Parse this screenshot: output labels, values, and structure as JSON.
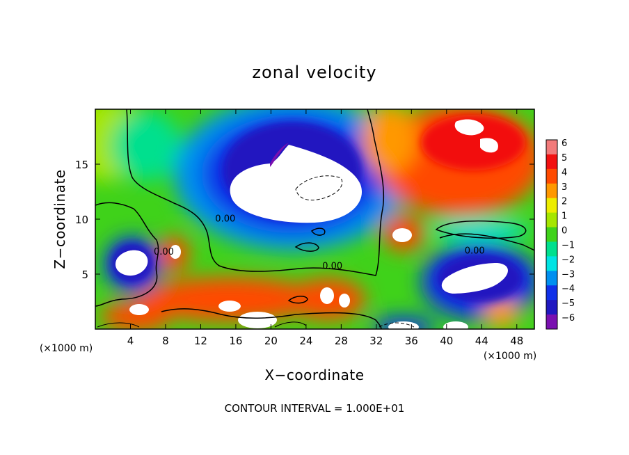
{
  "chart_data": {
    "type": "heatmap",
    "title": "zonal velocity",
    "xlabel": "X−coordinate",
    "ylabel": "Z−coordinate",
    "x_unit_left": "(×1000 m)",
    "x_unit_right": "(×1000 m)",
    "xlim": [
      0,
      50
    ],
    "ylim": [
      0,
      20
    ],
    "x_ticks": [
      4,
      8,
      12,
      16,
      20,
      24,
      28,
      32,
      36,
      40,
      44,
      48
    ],
    "x_tick_labels": [
      "4",
      "8",
      "12",
      "16",
      "20",
      "24",
      "28",
      "32",
      "36",
      "40",
      "44",
      "48"
    ],
    "y_ticks": [
      5,
      10,
      15
    ],
    "y_tick_labels": [
      "5",
      "10",
      "15"
    ],
    "colorbar": {
      "levels": [
        6,
        5,
        4,
        3,
        2,
        1,
        0,
        -1,
        -2,
        -3,
        -4,
        -5,
        -6
      ],
      "labels": [
        "6",
        "5",
        "4",
        "3",
        "2",
        "1",
        "0",
        "−1",
        "−2",
        "−3",
        "−4",
        "−5",
        "−6"
      ],
      "colors": [
        "#f27a7a",
        "#f21010",
        "#ff4a00",
        "#ff9800",
        "#eded00",
        "#a5e600",
        "#3fd21a",
        "#00e08e",
        "#00e4e4",
        "#008ff0",
        "#1030e8",
        "#2018c0",
        "#7a10b0"
      ]
    },
    "contour_labels": [
      {
        "text": "0.00",
        "x": 14.8,
        "z": 9.9
      },
      {
        "text": "0.00",
        "x": 7.8,
        "z": 6.9
      },
      {
        "text": "0.00",
        "x": 27.0,
        "z": 5.6
      },
      {
        "text": "0.00",
        "x": 43.2,
        "z": 7.0
      }
    ],
    "features": [
      {
        "x": 23.5,
        "z": 12.8,
        "value": -6
      },
      {
        "x": 5.2,
        "z": 5.8,
        "value": -6
      },
      {
        "x": 43.0,
        "z": 4.9,
        "value": -6
      },
      {
        "x": 43.0,
        "z": 9.2,
        "value": -2
      },
      {
        "x": 44.0,
        "z": 17.2,
        "value": 6
      },
      {
        "x": 34.5,
        "z": 8.4,
        "value": 6
      },
      {
        "x": 9.8,
        "z": 7.2,
        "value": 6
      },
      {
        "x": 27.0,
        "z": 2.7,
        "value": 6
      },
      {
        "x": 20.0,
        "z": 1.8,
        "value": 6
      }
    ],
    "annotation": "CONTOUR INTERVAL = 1.000E+01"
  }
}
